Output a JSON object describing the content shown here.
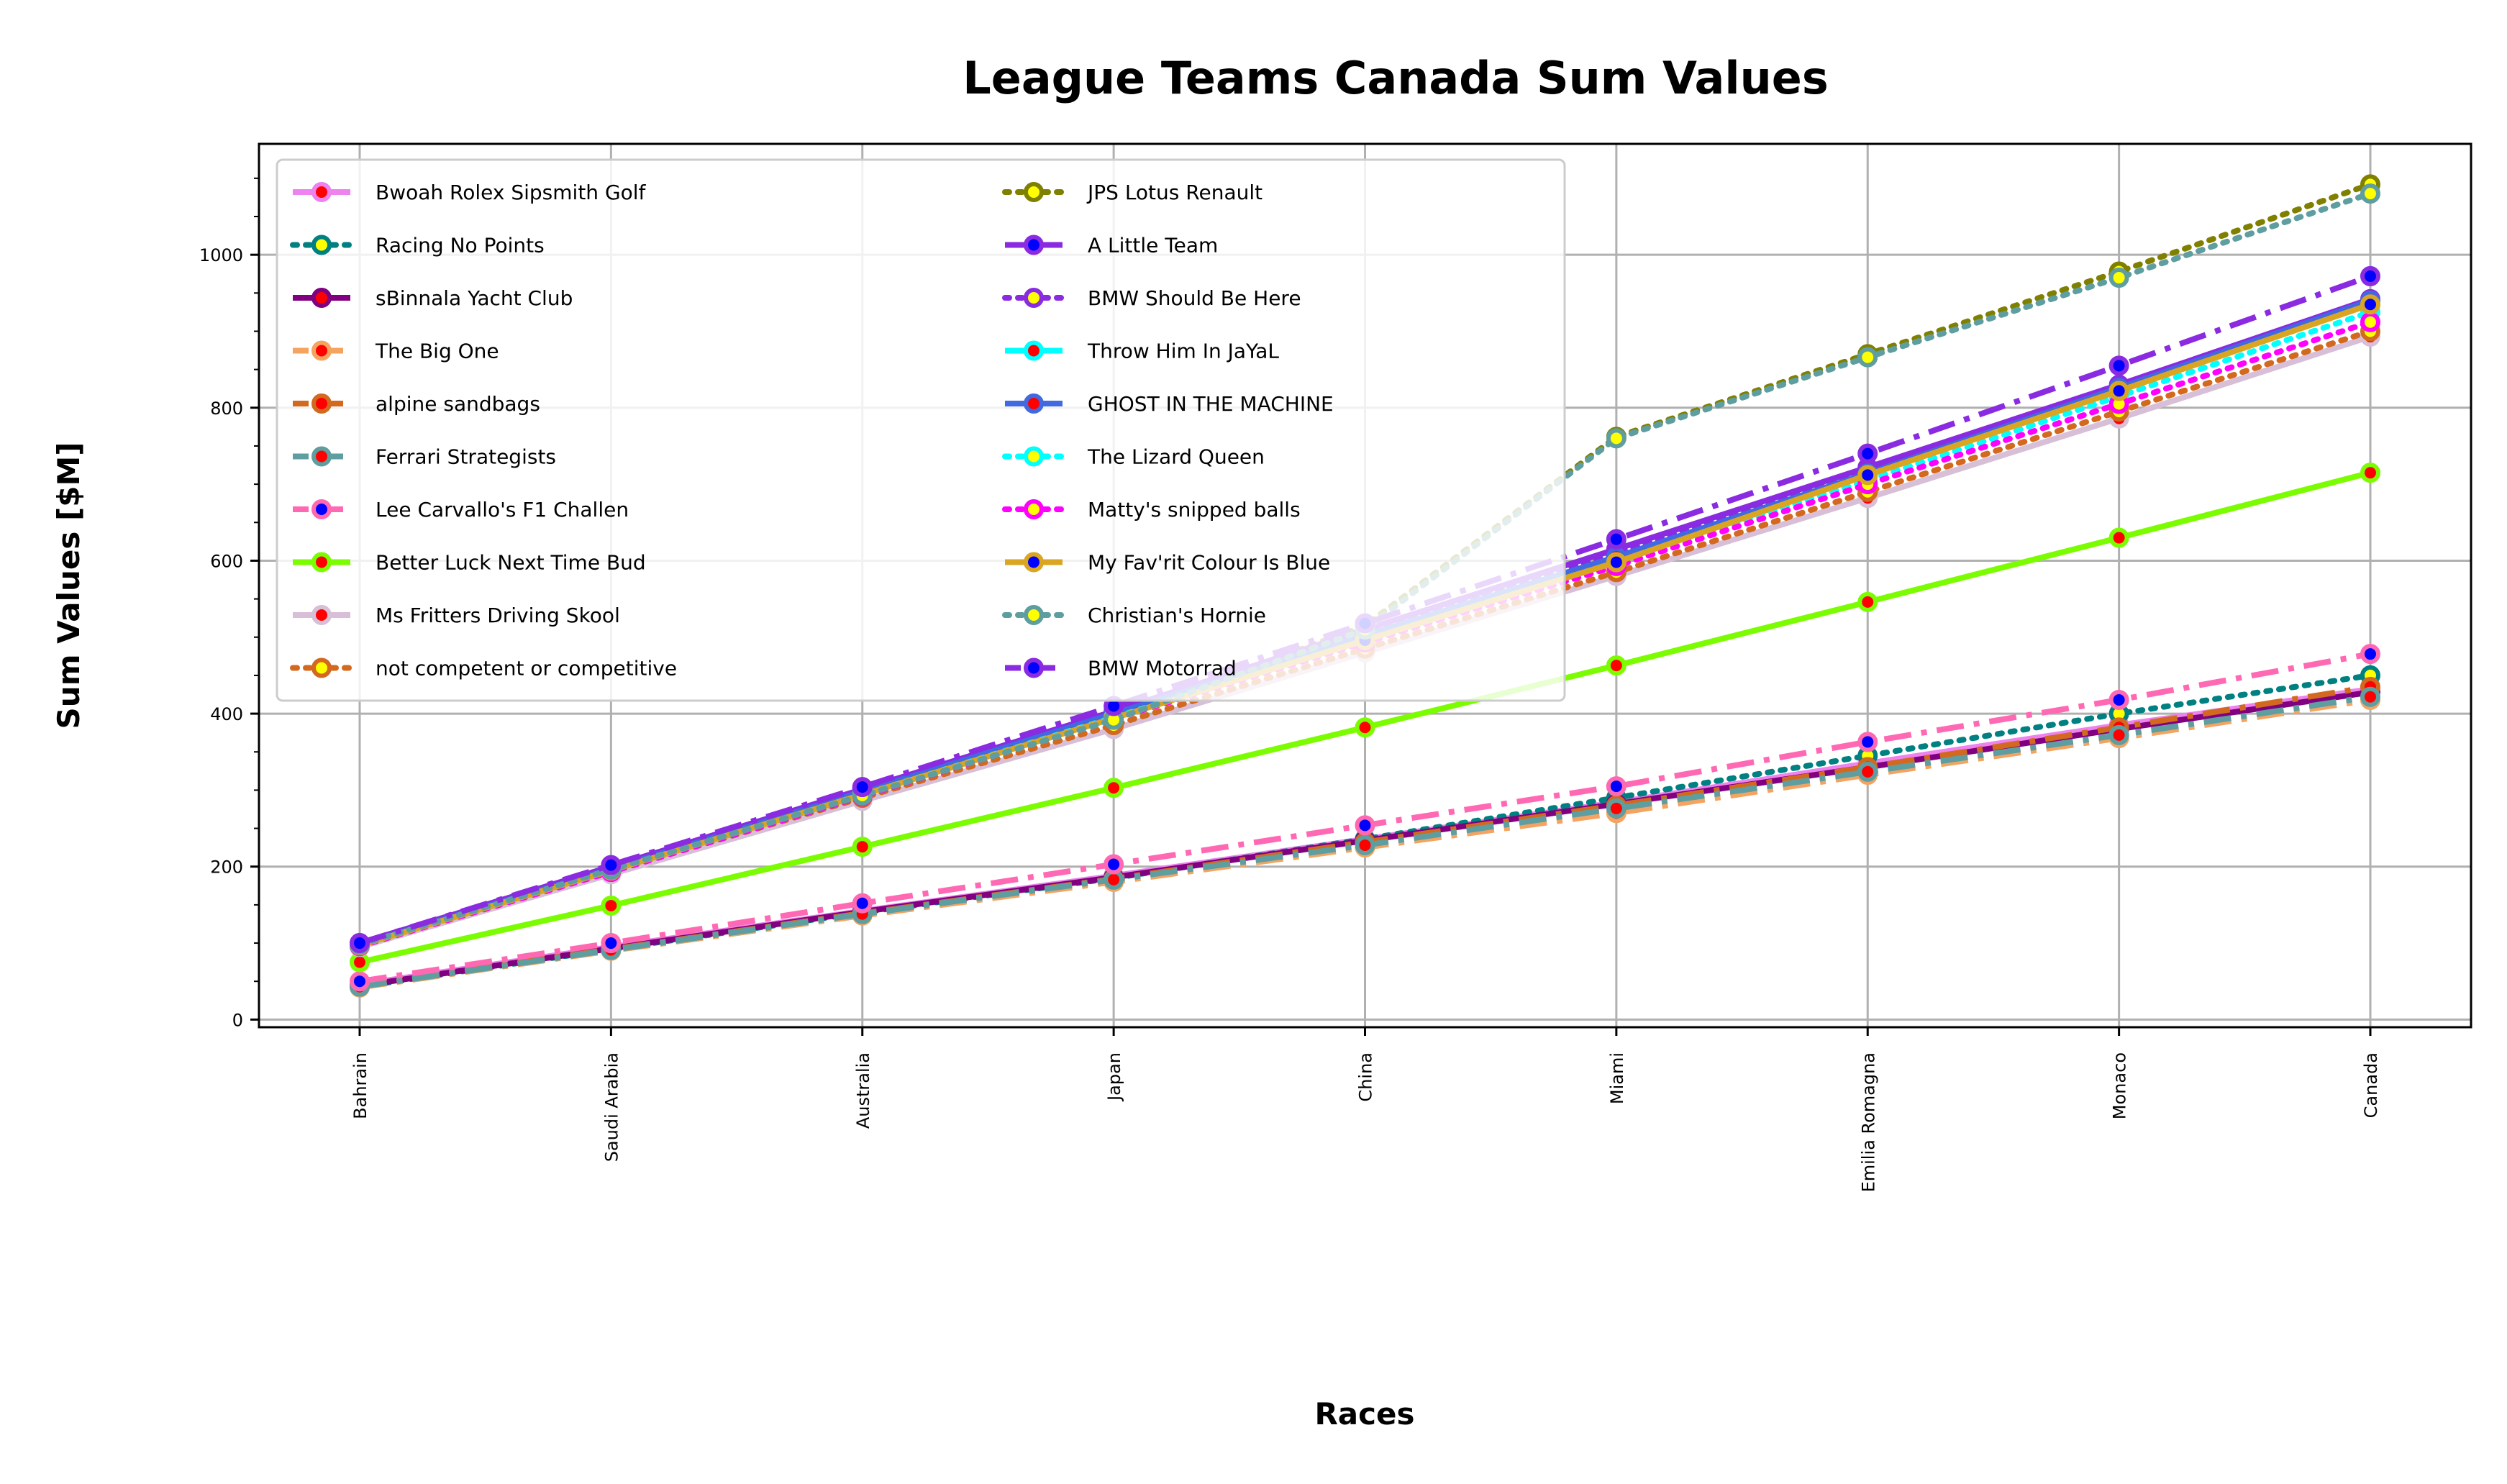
{
  "chart_data": {
    "type": "line",
    "title": "League Teams Canada Sum Values",
    "xlabel": "Races",
    "ylabel": "Sum Values [$M]",
    "categories": [
      "Bahrain",
      "Saudi Arabia",
      "Australia",
      "Japan",
      "China",
      "Miami",
      "Emilia Romagna",
      "Monaco",
      "Canada"
    ],
    "ylim": [
      -10,
      1145
    ],
    "yticks": [
      0,
      200,
      400,
      600,
      800,
      1000
    ],
    "grid": true,
    "legend_position": "top-left",
    "legend_columns": 2,
    "series": [
      {
        "name": "Bwoah Rolex Sipsmith Golf",
        "color": "#EE82EE",
        "marker_face": "#FF0000",
        "marker_edge": "#EE82EE",
        "dash": "solid",
        "values": [
          46,
          95,
          142,
          188,
          236,
          284,
          335,
          385,
          432
        ]
      },
      {
        "name": "Racing No Points",
        "color": "#008080",
        "marker_face": "#FFFF00",
        "marker_edge": "#008080",
        "dash": "dot",
        "values": [
          43,
          92,
          140,
          185,
          236,
          290,
          345,
          400,
          450
        ]
      },
      {
        "name": "sBinnala Yacht Club",
        "color": "#800080",
        "marker_face": "#FF0000",
        "marker_edge": "#800080",
        "dash": "solid",
        "values": [
          44,
          93,
          141,
          186,
          234,
          282,
          330,
          380,
          428
        ]
      },
      {
        "name": "The Big One",
        "color": "#F4A460",
        "marker_face": "#FF0000",
        "marker_edge": "#F4A460",
        "dash": "dashdot",
        "values": [
          42,
          90,
          136,
          180,
          225,
          270,
          320,
          368,
          418
        ]
      },
      {
        "name": "alpine sandbags",
        "color": "#D2691E",
        "marker_face": "#FF0000",
        "marker_edge": "#D2691E",
        "dash": "dashdot",
        "values": [
          44,
          92,
          139,
          184,
          232,
          280,
          330,
          382,
          435
        ]
      },
      {
        "name": "Ferrari Strategists",
        "color": "#5F9EA0",
        "marker_face": "#FF0000",
        "marker_edge": "#5F9EA0",
        "dash": "dashdot",
        "values": [
          43,
          91,
          138,
          183,
          228,
          276,
          324,
          372,
          422
        ]
      },
      {
        "name": "Lee Carvallo's F1 Challen",
        "color": "#FF69B4",
        "marker_face": "#0000FF",
        "marker_edge": "#FF69B4",
        "dash": "dashdot",
        "values": [
          50,
          100,
          152,
          203,
          254,
          305,
          363,
          418,
          478
        ]
      },
      {
        "name": "Better Luck Next Time Bud",
        "color": "#7CFC00",
        "marker_face": "#FF0000",
        "marker_edge": "#7CFC00",
        "dash": "solid",
        "values": [
          75,
          149,
          226,
          303,
          382,
          463,
          546,
          630,
          715
        ]
      },
      {
        "name": "Ms Fritters Driving Skool",
        "color": "#D8BFD8",
        "marker_face": "#FF0000",
        "marker_edge": "#D8BFD8",
        "dash": "solid",
        "values": [
          95,
          190,
          286,
          380,
          480,
          580,
          682,
          786,
          893
        ]
      },
      {
        "name": "not competent or competitive",
        "color": "#D2691E",
        "marker_face": "#FFFF00",
        "marker_edge": "#D2691E",
        "dash": "dot",
        "values": [
          97,
          194,
          290,
          385,
          485,
          585,
          690,
          795,
          900
        ]
      },
      {
        "name": "JPS Lotus Renault",
        "color": "#808000",
        "marker_face": "#FFFF00",
        "marker_edge": "#808000",
        "dash": "dot",
        "values": [
          98,
          195,
          292,
          395,
          515,
          762,
          870,
          978,
          1092
        ]
      },
      {
        "name": "A Little Team",
        "color": "#8A2BE2",
        "marker_face": "#0000FF",
        "marker_edge": "#8A2BE2",
        "dash": "solid",
        "values": [
          100,
          200,
          301,
          403,
          510,
          615,
          722,
          830,
          942
        ]
      },
      {
        "name": "BMW Should Be Here",
        "color": "#8A2BE2",
        "marker_face": "#FFFF00",
        "marker_edge": "#8A2BE2",
        "dash": "dot",
        "values": [
          99,
          198,
          300,
          402,
          508,
          610,
          718,
          825,
          935
        ]
      },
      {
        "name": "Throw Him In JaYaL",
        "color": "#00FFFF",
        "marker_face": "#FF0000",
        "marker_edge": "#00FFFF",
        "dash": "solid",
        "values": [
          97,
          196,
          296,
          398,
          500,
          602,
          712,
          825,
          938
        ]
      },
      {
        "name": "GHOST IN THE MACHINE",
        "color": "#4169E1",
        "marker_face": "#FF0000",
        "marker_edge": "#4169E1",
        "dash": "solid",
        "values": [
          98,
          197,
          298,
          400,
          502,
          605,
          714,
          826,
          940
        ]
      },
      {
        "name": "The Lizard Queen",
        "color": "#00FFFF",
        "marker_face": "#FFFF00",
        "marker_edge": "#00FFFF",
        "dash": "dot",
        "values": [
          96,
          194,
          294,
          395,
          496,
          598,
          705,
          815,
          925
        ]
      },
      {
        "name": "Matty's snipped balls",
        "color": "#FF00FF",
        "marker_face": "#FFFF00",
        "marker_edge": "#FF00FF",
        "dash": "dot",
        "values": [
          96,
          193,
          292,
          393,
          493,
          593,
          700,
          805,
          912
        ]
      },
      {
        "name": "My Fav'rit Colour Is Blue",
        "color": "#DAA520",
        "marker_face": "#0000FF",
        "marker_edge": "#DAA520",
        "dash": "solid",
        "values": [
          97,
          195,
          294,
          394,
          496,
          598,
          712,
          822,
          935
        ]
      },
      {
        "name": "Christian's Hornie",
        "color": "#5F9EA0",
        "marker_face": "#FFFF00",
        "marker_edge": "#5F9EA0",
        "dash": "dot",
        "values": [
          98,
          196,
          293,
          392,
          510,
          760,
          866,
          970,
          1080
        ]
      },
      {
        "name": "BMW Motorrad",
        "color": "#8A2BE2",
        "marker_face": "#0000FF",
        "marker_edge": "#8A2BE2",
        "dash": "dashdot",
        "values": [
          100,
          202,
          304,
          410,
          518,
          628,
          740,
          855,
          972
        ]
      }
    ]
  }
}
